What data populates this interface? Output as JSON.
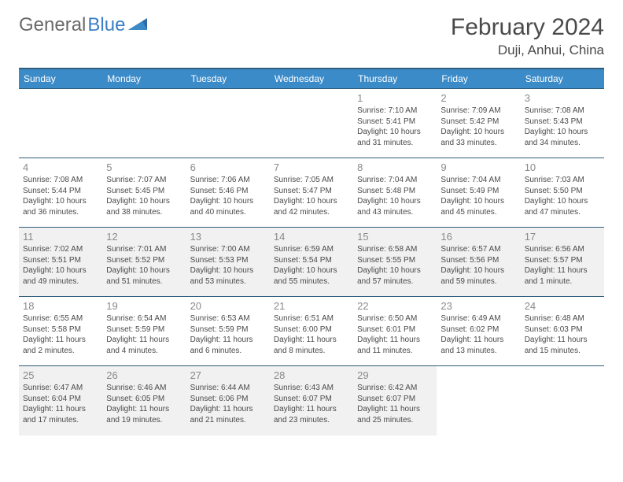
{
  "logo": {
    "text_gray": "General",
    "text_blue": "Blue"
  },
  "title": "February 2024",
  "location": "Duji, Anhui, China",
  "colors": {
    "header_bg": "#3b8bc9",
    "header_border": "#2f5d7a",
    "cell_border": "#2f5d7a",
    "shaded_bg": "#f1f1f1",
    "logo_gray": "#6a6a6a",
    "logo_blue": "#3b7fc4"
  },
  "day_headers": [
    "Sunday",
    "Monday",
    "Tuesday",
    "Wednesday",
    "Thursday",
    "Friday",
    "Saturday"
  ],
  "weeks": [
    [
      {
        "empty": true
      },
      {
        "empty": true
      },
      {
        "empty": true
      },
      {
        "empty": true
      },
      {
        "n": "1",
        "sr": "7:10 AM",
        "ss": "5:41 PM",
        "dl": "10 hours and 31 minutes."
      },
      {
        "n": "2",
        "sr": "7:09 AM",
        "ss": "5:42 PM",
        "dl": "10 hours and 33 minutes."
      },
      {
        "n": "3",
        "sr": "7:08 AM",
        "ss": "5:43 PM",
        "dl": "10 hours and 34 minutes."
      }
    ],
    [
      {
        "n": "4",
        "sr": "7:08 AM",
        "ss": "5:44 PM",
        "dl": "10 hours and 36 minutes."
      },
      {
        "n": "5",
        "sr": "7:07 AM",
        "ss": "5:45 PM",
        "dl": "10 hours and 38 minutes."
      },
      {
        "n": "6",
        "sr": "7:06 AM",
        "ss": "5:46 PM",
        "dl": "10 hours and 40 minutes."
      },
      {
        "n": "7",
        "sr": "7:05 AM",
        "ss": "5:47 PM",
        "dl": "10 hours and 42 minutes."
      },
      {
        "n": "8",
        "sr": "7:04 AM",
        "ss": "5:48 PM",
        "dl": "10 hours and 43 minutes."
      },
      {
        "n": "9",
        "sr": "7:04 AM",
        "ss": "5:49 PM",
        "dl": "10 hours and 45 minutes."
      },
      {
        "n": "10",
        "sr": "7:03 AM",
        "ss": "5:50 PM",
        "dl": "10 hours and 47 minutes."
      }
    ],
    [
      {
        "n": "11",
        "sr": "7:02 AM",
        "ss": "5:51 PM",
        "dl": "10 hours and 49 minutes."
      },
      {
        "n": "12",
        "sr": "7:01 AM",
        "ss": "5:52 PM",
        "dl": "10 hours and 51 minutes."
      },
      {
        "n": "13",
        "sr": "7:00 AM",
        "ss": "5:53 PM",
        "dl": "10 hours and 53 minutes."
      },
      {
        "n": "14",
        "sr": "6:59 AM",
        "ss": "5:54 PM",
        "dl": "10 hours and 55 minutes."
      },
      {
        "n": "15",
        "sr": "6:58 AM",
        "ss": "5:55 PM",
        "dl": "10 hours and 57 minutes."
      },
      {
        "n": "16",
        "sr": "6:57 AM",
        "ss": "5:56 PM",
        "dl": "10 hours and 59 minutes."
      },
      {
        "n": "17",
        "sr": "6:56 AM",
        "ss": "5:57 PM",
        "dl": "11 hours and 1 minute."
      }
    ],
    [
      {
        "n": "18",
        "sr": "6:55 AM",
        "ss": "5:58 PM",
        "dl": "11 hours and 2 minutes."
      },
      {
        "n": "19",
        "sr": "6:54 AM",
        "ss": "5:59 PM",
        "dl": "11 hours and 4 minutes."
      },
      {
        "n": "20",
        "sr": "6:53 AM",
        "ss": "5:59 PM",
        "dl": "11 hours and 6 minutes."
      },
      {
        "n": "21",
        "sr": "6:51 AM",
        "ss": "6:00 PM",
        "dl": "11 hours and 8 minutes."
      },
      {
        "n": "22",
        "sr": "6:50 AM",
        "ss": "6:01 PM",
        "dl": "11 hours and 11 minutes."
      },
      {
        "n": "23",
        "sr": "6:49 AM",
        "ss": "6:02 PM",
        "dl": "11 hours and 13 minutes."
      },
      {
        "n": "24",
        "sr": "6:48 AM",
        "ss": "6:03 PM",
        "dl": "11 hours and 15 minutes."
      }
    ],
    [
      {
        "n": "25",
        "sr": "6:47 AM",
        "ss": "6:04 PM",
        "dl": "11 hours and 17 minutes."
      },
      {
        "n": "26",
        "sr": "6:46 AM",
        "ss": "6:05 PM",
        "dl": "11 hours and 19 minutes."
      },
      {
        "n": "27",
        "sr": "6:44 AM",
        "ss": "6:06 PM",
        "dl": "11 hours and 21 minutes."
      },
      {
        "n": "28",
        "sr": "6:43 AM",
        "ss": "6:07 PM",
        "dl": "11 hours and 23 minutes."
      },
      {
        "n": "29",
        "sr": "6:42 AM",
        "ss": "6:07 PM",
        "dl": "11 hours and 25 minutes."
      },
      {
        "empty": true
      },
      {
        "empty": true
      }
    ]
  ],
  "labels": {
    "sunrise": "Sunrise:",
    "sunset": "Sunset:",
    "daylight": "Daylight:"
  },
  "shaded_rows": [
    2,
    4
  ]
}
